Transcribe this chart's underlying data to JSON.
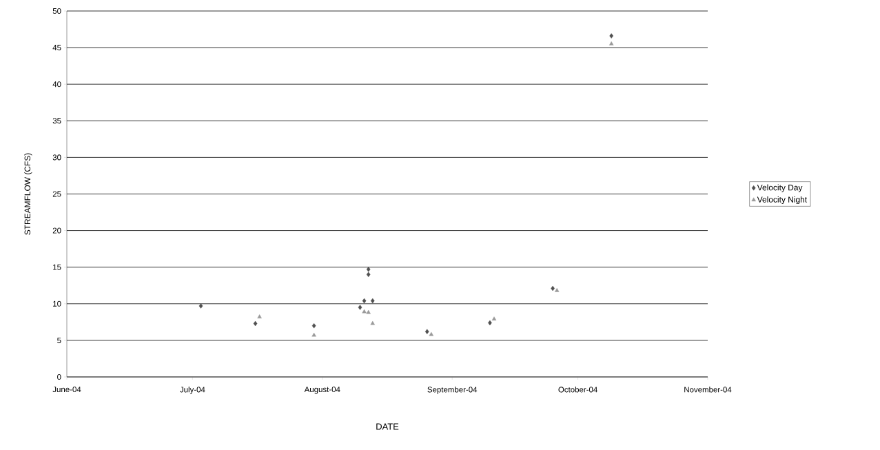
{
  "chart_data": {
    "type": "scatter",
    "xlabel": "DATE",
    "ylabel": "STREAMFLOW (CFS)",
    "xlim": [
      "2004-06-01",
      "2004-11-01"
    ],
    "xticks": [
      {
        "value": "2004-06-01",
        "label": "June-04"
      },
      {
        "value": "2004-07-01",
        "label": "July-04"
      },
      {
        "value": "2004-08-01",
        "label": "August-04"
      },
      {
        "value": "2004-09-01",
        "label": "September-04"
      },
      {
        "value": "2004-10-01",
        "label": "October-04"
      },
      {
        "value": "2004-11-01",
        "label": "November-04"
      }
    ],
    "ylim": [
      0,
      50
    ],
    "yticks": [
      0,
      5,
      10,
      15,
      20,
      25,
      30,
      35,
      40,
      45,
      50
    ],
    "grid": "y",
    "legend": "right",
    "series": [
      {
        "name": "Velocity Day",
        "color": "#505050",
        "marker": "diamond",
        "x": [
          "2004-07-03",
          "2004-07-16",
          "2004-07-30",
          "2004-08-10",
          "2004-08-11",
          "2004-08-12",
          "2004-08-12",
          "2004-08-13",
          "2004-08-26",
          "2004-09-10",
          "2004-09-25",
          "2004-10-09"
        ],
        "values": [
          9.7,
          7.3,
          7.0,
          9.5,
          10.4,
          14.7,
          14.0,
          10.4,
          6.2,
          7.4,
          12.1,
          46.6
        ]
      },
      {
        "name": "Velocity Night",
        "color": "#9a9a9a",
        "marker": "triangle",
        "x": [
          "2004-07-17",
          "2004-07-30",
          "2004-08-11",
          "2004-08-12",
          "2004-08-13",
          "2004-08-27",
          "2004-09-11",
          "2004-09-26",
          "2004-10-09"
        ],
        "values": [
          8.2,
          5.7,
          8.9,
          8.8,
          7.3,
          5.8,
          7.9,
          11.8,
          45.5
        ]
      }
    ]
  }
}
